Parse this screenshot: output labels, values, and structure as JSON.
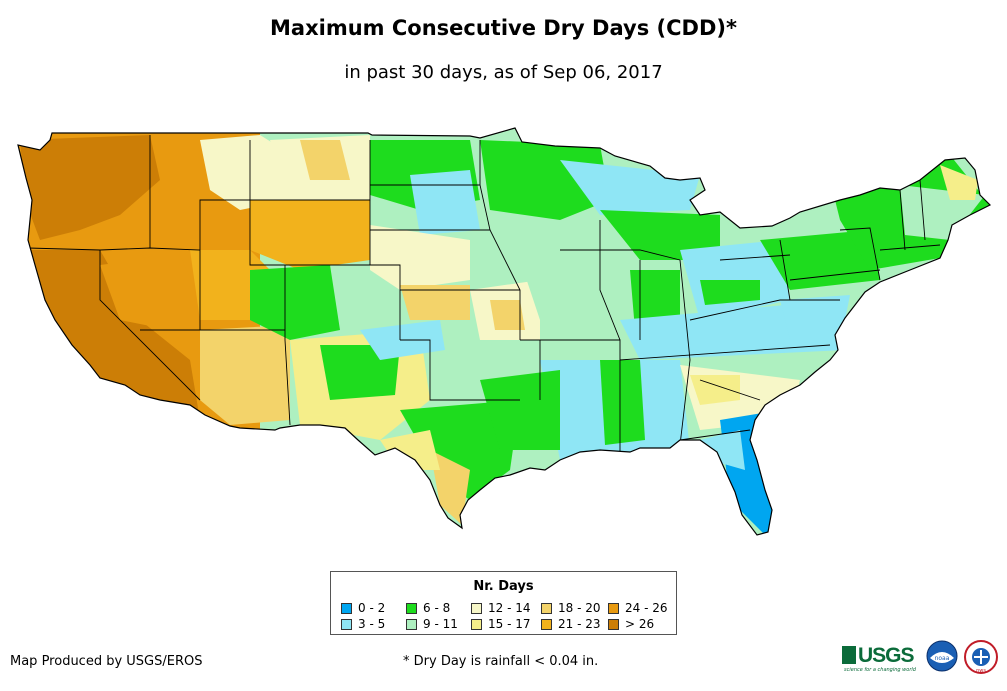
{
  "title": "Maximum Consecutive Dry Days (CDD)*",
  "subtitle": "in past 30 days, as of Sep 06, 2017",
  "legend": {
    "title": "Nr. Days",
    "items": [
      {
        "label": "0 - 2",
        "color": "#00a6f0"
      },
      {
        "label": "3 - 5",
        "color": "#8fe6f5"
      },
      {
        "label": "6 - 8",
        "color": "#1edc1e"
      },
      {
        "label": "9 - 11",
        "color": "#aef0c0"
      },
      {
        "label": "12 - 14",
        "color": "#f7f7c8"
      },
      {
        "label": "15 - 17",
        "color": "#f5ee8a"
      },
      {
        "label": "18 - 20",
        "color": "#f3d36a"
      },
      {
        "label": "21 - 23",
        "color": "#f2b21c"
      },
      {
        "label": "24 - 26",
        "color": "#e89a10"
      },
      {
        "label": "> 26",
        "color": "#cc7e06"
      }
    ]
  },
  "footer": {
    "credit": "Map Produced by USGS/EROS",
    "note": "* Dry Day is rainfall < 0.04 in."
  },
  "logos": {
    "usgs": "USGS",
    "usgs_tagline": "science for a changing world",
    "noaa": "noaa",
    "nws": "nws"
  }
}
